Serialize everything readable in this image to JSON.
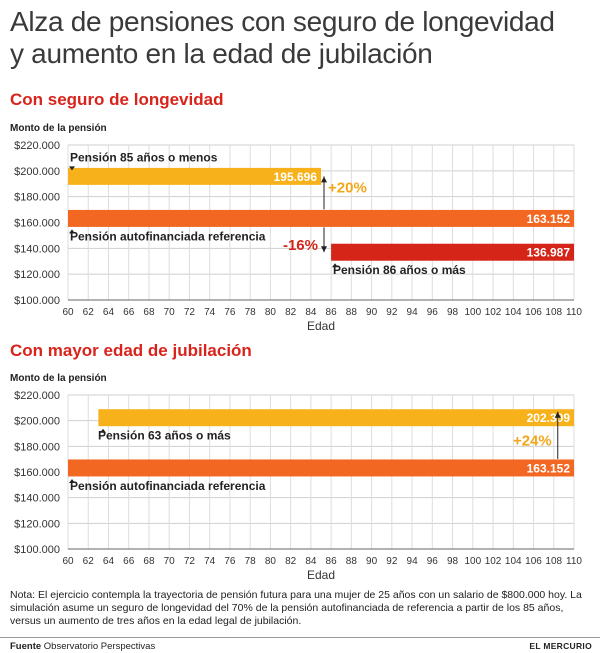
{
  "title_line1": "Alza de pensiones con seguro de longevidad",
  "title_line2": "y aumento en la edad de jubilación",
  "colors": {
    "yellow": "#f7b21b",
    "orange": "#f26722",
    "red": "#d42518",
    "green_text": "#f2a71b",
    "red_text": "#d42518"
  },
  "chart_data": [
    {
      "type": "bar",
      "title": "Con seguro de longevidad",
      "ylabel": "Monto de la pensión",
      "xlabel": "Edad",
      "ylim": [
        100000,
        220000
      ],
      "xlim": [
        60,
        110
      ],
      "yticks": [
        "$100.000",
        "$120.000",
        "$140.000",
        "$160.000",
        "$180.000",
        "$200.000",
        "$220.000"
      ],
      "yvalues": [
        100000,
        120000,
        140000,
        160000,
        180000,
        200000,
        220000
      ],
      "xticks": [
        60,
        62,
        64,
        66,
        68,
        70,
        72,
        74,
        76,
        78,
        80,
        82,
        84,
        86,
        88,
        90,
        92,
        94,
        96,
        98,
        100,
        102,
        104,
        106,
        108,
        110
      ],
      "series": [
        {
          "name": "Pensión 85 años o menos",
          "value": 195696,
          "label": "195.696",
          "x_start": 60,
          "x_end": 85,
          "color": "yellow"
        },
        {
          "name": "Pensión autofinanciada referencia",
          "value": 163152,
          "label": "163.152",
          "x_start": 60,
          "x_end": 110,
          "color": "orange"
        },
        {
          "name": "Pensión 86 años o más",
          "value": 136987,
          "label": "136.987",
          "x_start": 86,
          "x_end": 110,
          "color": "red"
        }
      ],
      "annotations": [
        {
          "text": "+20%",
          "color": "green_text"
        },
        {
          "text": "-16%",
          "color": "red_text"
        }
      ]
    },
    {
      "type": "bar",
      "title": "Con mayor edad de jubilación",
      "ylabel": "Monto de la pensión",
      "xlabel": "Edad",
      "ylim": [
        100000,
        220000
      ],
      "xlim": [
        60,
        110
      ],
      "yticks": [
        "$100.000",
        "$120.000",
        "$140.000",
        "$160.000",
        "$180.000",
        "$200.000",
        "$220.000"
      ],
      "yvalues": [
        100000,
        120000,
        140000,
        160000,
        180000,
        200000,
        220000
      ],
      "xticks": [
        60,
        62,
        64,
        66,
        68,
        70,
        72,
        74,
        76,
        78,
        80,
        82,
        84,
        86,
        88,
        90,
        92,
        94,
        96,
        98,
        100,
        102,
        104,
        106,
        108,
        110
      ],
      "series": [
        {
          "name": "Pensión 63 años o más",
          "value": 202309,
          "label": "202.309",
          "x_start": 63,
          "x_end": 110,
          "color": "yellow"
        },
        {
          "name": "Pensión autofinanciada referencia",
          "value": 163152,
          "label": "163.152",
          "x_start": 60,
          "x_end": 110,
          "color": "orange"
        }
      ],
      "annotations": [
        {
          "text": "+24%",
          "color": "green_text"
        }
      ]
    }
  ],
  "note": "Nota: El ejercicio contempla la trayectoria de pensión futura para una mujer de 25 años con un salario de $800.000 hoy. La simulación asume un seguro de longevidad del 70% de la pensión autofinanciada de referencia a partir de los 85 años, versus un aumento de tres años en la edad legal de jubilación.",
  "footer": {
    "source_label": "Fuente",
    "source_text": "Observatorio Perspectivas",
    "brand": "EL MERCURIO"
  }
}
